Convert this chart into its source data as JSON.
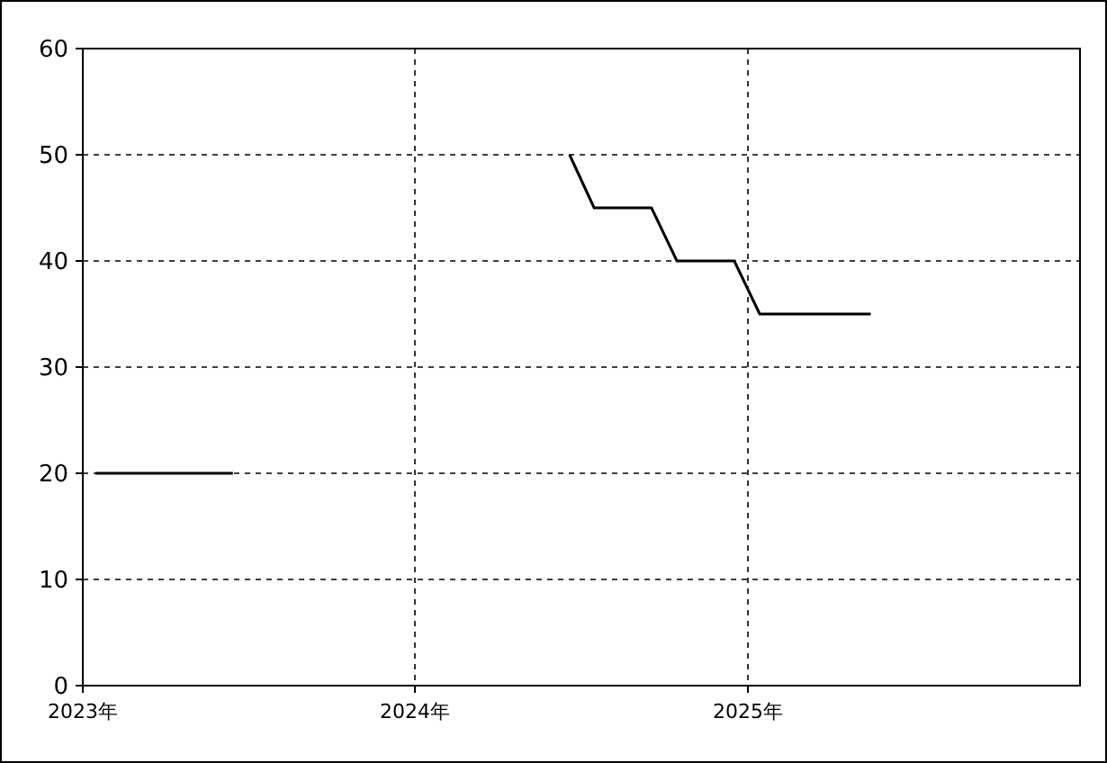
{
  "chart_data": {
    "type": "line",
    "x": [
      "2023-01-15",
      "2023-06-15",
      "2024-01-01",
      "2024-06-19",
      "2024-07-16",
      "2024-09-17",
      "2024-10-15",
      "2024-12-17",
      "2025-01-14",
      "2025-05-16"
    ],
    "series": [
      {
        "color": "#000000",
        "values": [
          20,
          20,
          null,
          50,
          45,
          45,
          40,
          40,
          35,
          35
        ]
      }
    ],
    "xlim": [
      "2023-01-01",
      "2026-01-01"
    ],
    "xticks": [
      {
        "value": "2023-01-01",
        "label": "2023年"
      },
      {
        "value": "2024-01-01",
        "label": "2024年"
      },
      {
        "value": "2025-01-01",
        "label": "2025年"
      }
    ],
    "ylim": [
      0,
      60
    ],
    "yticks": [
      0,
      10,
      20,
      30,
      40,
      50,
      60
    ],
    "grid": true,
    "marker": "none",
    "line_style": "solid"
  }
}
